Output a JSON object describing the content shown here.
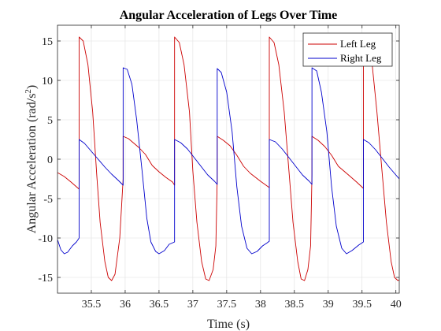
{
  "chart_data": {
    "type": "line",
    "title": "Angular Acceleration of Legs Over Time",
    "xlabel": "Time (s)",
    "ylabel_main": "Angular Acceleration (rad/s",
    "ylabel_sup": "2",
    "ylabel_tail": ")",
    "xlim": [
      35.0,
      40.05
    ],
    "ylim": [
      -17,
      17
    ],
    "xticks": [
      35.5,
      36,
      36.5,
      37,
      37.5,
      38,
      38.5,
      39,
      39.5,
      40
    ],
    "xtick_labels": [
      "35.5",
      "36",
      "36.5",
      "37",
      "37.5",
      "38",
      "38.5",
      "39",
      "39.5",
      "40"
    ],
    "yticks": [
      -15,
      -10,
      -5,
      0,
      5,
      10,
      15
    ],
    "ytick_labels": [
      "-15",
      "-10",
      "-5",
      "0",
      "5",
      "10",
      "15"
    ],
    "grid": true,
    "legend_position": "top-right",
    "series": [
      {
        "name": "Left Leg",
        "color": "#cc0000",
        "points": [
          [
            35.0,
            -1.7
          ],
          [
            35.1,
            -2.2
          ],
          [
            35.2,
            -2.9
          ],
          [
            35.32,
            -3.8
          ],
          [
            35.32,
            15.5
          ],
          [
            35.38,
            15.0
          ],
          [
            35.45,
            12.0
          ],
          [
            35.52,
            6.0
          ],
          [
            35.58,
            -2.0
          ],
          [
            35.63,
            -8.0
          ],
          [
            35.7,
            -13.0
          ],
          [
            35.75,
            -15.0
          ],
          [
            35.8,
            -15.4
          ],
          [
            35.85,
            -14.6
          ],
          [
            35.92,
            -10.0
          ],
          [
            35.97,
            -2.5
          ],
          [
            35.97,
            2.9
          ],
          [
            36.05,
            2.6
          ],
          [
            36.2,
            1.5
          ],
          [
            36.3,
            0.6
          ],
          [
            36.4,
            -0.8
          ],
          [
            36.5,
            -1.6
          ],
          [
            36.6,
            -2.3
          ],
          [
            36.7,
            -2.9
          ],
          [
            36.73,
            -3.3
          ],
          [
            36.73,
            15.5
          ],
          [
            36.8,
            14.8
          ],
          [
            36.87,
            12.0
          ],
          [
            36.95,
            6.0
          ],
          [
            37.0,
            -1.5
          ],
          [
            37.06,
            -8.0
          ],
          [
            37.13,
            -13.0
          ],
          [
            37.19,
            -15.2
          ],
          [
            37.24,
            -15.4
          ],
          [
            37.3,
            -14.0
          ],
          [
            37.34,
            -11.0
          ],
          [
            37.36,
            -2.5
          ],
          [
            37.36,
            2.9
          ],
          [
            37.45,
            2.4
          ],
          [
            37.55,
            1.7
          ],
          [
            37.65,
            0.5
          ],
          [
            37.75,
            -0.9
          ],
          [
            37.85,
            -1.8
          ],
          [
            38.0,
            -2.8
          ],
          [
            38.13,
            -3.6
          ],
          [
            38.13,
            15.5
          ],
          [
            38.2,
            14.8
          ],
          [
            38.27,
            12.0
          ],
          [
            38.35,
            6.0
          ],
          [
            38.42,
            -1.5
          ],
          [
            38.48,
            -8.0
          ],
          [
            38.55,
            -13.0
          ],
          [
            38.6,
            -15.2
          ],
          [
            38.65,
            -15.4
          ],
          [
            38.7,
            -14.0
          ],
          [
            38.74,
            -11.0
          ],
          [
            38.76,
            -2.0
          ],
          [
            38.76,
            2.9
          ],
          [
            38.85,
            2.4
          ],
          [
            38.95,
            1.6
          ],
          [
            39.05,
            0.5
          ],
          [
            39.15,
            -0.9
          ],
          [
            39.3,
            -2.0
          ],
          [
            39.42,
            -2.9
          ],
          [
            39.52,
            -3.7
          ],
          [
            39.52,
            15.5
          ],
          [
            39.58,
            15.0
          ],
          [
            39.65,
            12.0
          ],
          [
            39.72,
            6.0
          ],
          [
            39.8,
            -2.0
          ],
          [
            39.86,
            -8.0
          ],
          [
            39.93,
            -13.0
          ],
          [
            39.98,
            -15.0
          ],
          [
            40.03,
            -15.4
          ],
          [
            40.05,
            -15.3
          ]
        ]
      },
      {
        "name": "Right Leg",
        "color": "#0000cc",
        "points": [
          [
            35.0,
            -10.2
          ],
          [
            35.05,
            -11.5
          ],
          [
            35.1,
            -12.0
          ],
          [
            35.15,
            -11.8
          ],
          [
            35.22,
            -11.0
          ],
          [
            35.28,
            -10.5
          ],
          [
            35.32,
            -10.0
          ],
          [
            35.32,
            2.5
          ],
          [
            35.4,
            2.0
          ],
          [
            35.5,
            1.0
          ],
          [
            35.6,
            0.0
          ],
          [
            35.7,
            -1.0
          ],
          [
            35.8,
            -1.9
          ],
          [
            35.9,
            -2.7
          ],
          [
            35.97,
            -3.3
          ],
          [
            35.97,
            11.6
          ],
          [
            36.03,
            11.4
          ],
          [
            36.1,
            9.5
          ],
          [
            36.17,
            5.0
          ],
          [
            36.25,
            -1.5
          ],
          [
            36.32,
            -7.5
          ],
          [
            36.38,
            -10.5
          ],
          [
            36.45,
            -11.7
          ],
          [
            36.5,
            -12.0
          ],
          [
            36.58,
            -11.6
          ],
          [
            36.65,
            -10.8
          ],
          [
            36.73,
            -10.5
          ],
          [
            36.73,
            2.5
          ],
          [
            36.82,
            2.1
          ],
          [
            36.92,
            1.3
          ],
          [
            37.02,
            0.2
          ],
          [
            37.12,
            -0.9
          ],
          [
            37.22,
            -2.0
          ],
          [
            37.32,
            -2.8
          ],
          [
            37.36,
            -3.2
          ],
          [
            37.36,
            11.5
          ],
          [
            37.42,
            11.0
          ],
          [
            37.5,
            8.5
          ],
          [
            37.58,
            3.5
          ],
          [
            37.65,
            -3.5
          ],
          [
            37.72,
            -8.5
          ],
          [
            37.8,
            -11.3
          ],
          [
            37.87,
            -12.0
          ],
          [
            37.95,
            -11.7
          ],
          [
            38.03,
            -11.0
          ],
          [
            38.1,
            -10.6
          ],
          [
            38.13,
            -10.4
          ],
          [
            38.13,
            2.5
          ],
          [
            38.22,
            2.2
          ],
          [
            38.32,
            1.3
          ],
          [
            38.42,
            0.2
          ],
          [
            38.52,
            -0.9
          ],
          [
            38.62,
            -2.0
          ],
          [
            38.72,
            -2.8
          ],
          [
            38.76,
            -3.2
          ],
          [
            38.76,
            11.6
          ],
          [
            38.83,
            11.2
          ],
          [
            38.9,
            8.5
          ],
          [
            38.98,
            3.5
          ],
          [
            39.05,
            -3.5
          ],
          [
            39.12,
            -8.5
          ],
          [
            39.2,
            -11.3
          ],
          [
            39.27,
            -12.0
          ],
          [
            39.35,
            -11.6
          ],
          [
            39.45,
            -10.9
          ],
          [
            39.52,
            -10.5
          ],
          [
            39.52,
            2.5
          ],
          [
            39.6,
            2.1
          ],
          [
            39.7,
            1.2
          ],
          [
            39.8,
            0.1
          ],
          [
            39.9,
            -1.0
          ],
          [
            40.0,
            -2.0
          ],
          [
            40.05,
            -2.5
          ]
        ]
      }
    ]
  }
}
